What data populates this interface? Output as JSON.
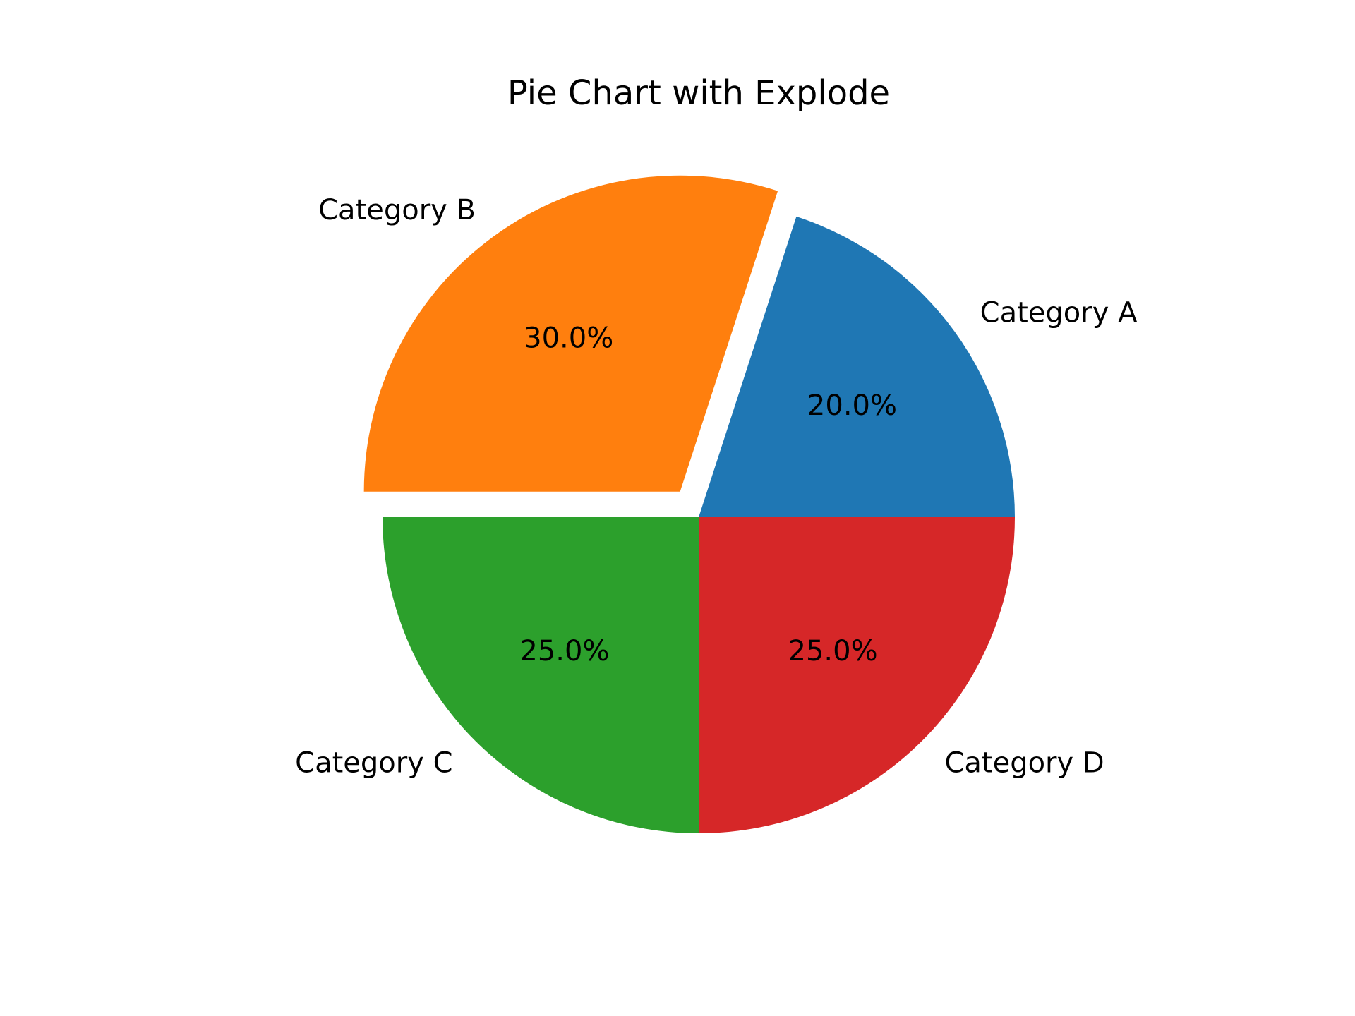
{
  "chart_data": {
    "type": "pie",
    "title": "Pie Chart with Explode",
    "labels": [
      "Category A",
      "Category B",
      "Category C",
      "Category D"
    ],
    "values": [
      20,
      30,
      25,
      25
    ],
    "percent_labels": [
      "20.0%",
      "30.0%",
      "25.0%",
      "25.0%"
    ],
    "colors": [
      "#1f77b4",
      "#ff7f0e",
      "#2ca02c",
      "#d62728"
    ],
    "explode": [
      0,
      0.1,
      0,
      0
    ],
    "start_angle_deg": 0,
    "direction": "counterclockwise",
    "legend": "none"
  }
}
